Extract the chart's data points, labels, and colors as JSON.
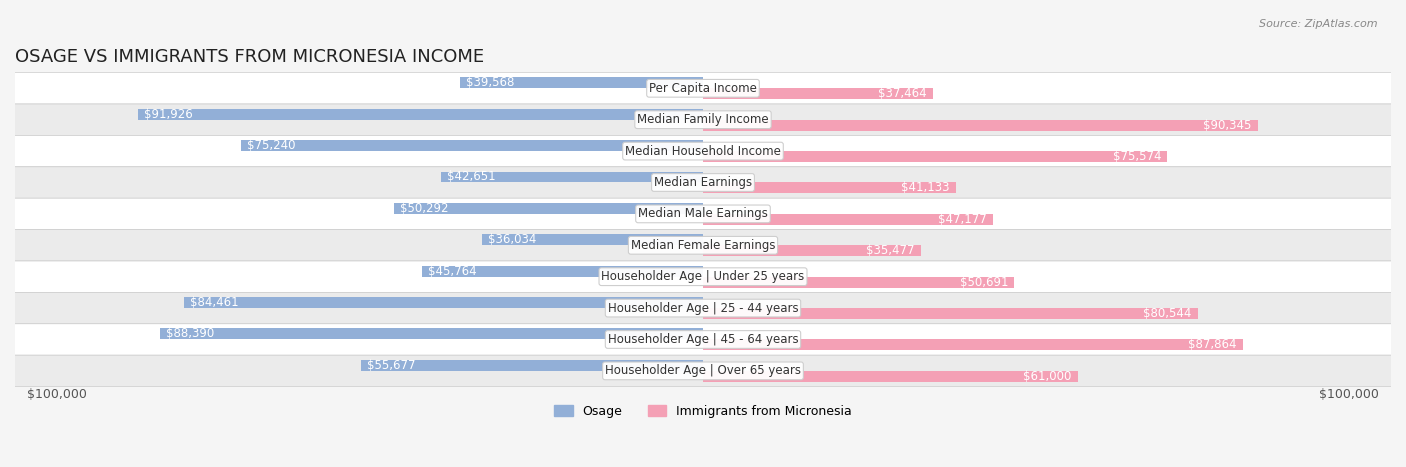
{
  "title": "OSAGE VS IMMIGRANTS FROM MICRONESIA INCOME",
  "source": "Source: ZipAtlas.com",
  "categories": [
    "Per Capita Income",
    "Median Family Income",
    "Median Household Income",
    "Median Earnings",
    "Median Male Earnings",
    "Median Female Earnings",
    "Householder Age | Under 25 years",
    "Householder Age | 25 - 44 years",
    "Householder Age | 45 - 64 years",
    "Householder Age | Over 65 years"
  ],
  "osage_values": [
    39568,
    91926,
    75240,
    42651,
    50292,
    36034,
    45764,
    84461,
    88390,
    55677
  ],
  "micronesia_values": [
    37464,
    90345,
    75574,
    41133,
    47177,
    35477,
    50691,
    80544,
    87864,
    61000
  ],
  "osage_labels": [
    "$39,568",
    "$91,926",
    "$75,240",
    "$42,651",
    "$50,292",
    "$36,034",
    "$45,764",
    "$84,461",
    "$88,390",
    "$55,677"
  ],
  "micronesia_labels": [
    "$37,464",
    "$90,345",
    "$75,574",
    "$41,133",
    "$47,177",
    "$35,477",
    "$50,691",
    "$80,544",
    "$87,864",
    "$61,000"
  ],
  "osage_color": "#92afd7",
  "osage_color_dark": "#6b8cba",
  "micronesia_color": "#f4a0b5",
  "micronesia_color_dark": "#e06080",
  "max_value": 100000,
  "legend_osage": "Osage",
  "legend_micronesia": "Immigrants from Micronesia",
  "bg_color": "#f5f5f5",
  "row_bg_light": "#ffffff",
  "row_bg_dark": "#eeeeee",
  "xlabel_left": "$100,000",
  "xlabel_right": "$100,000",
  "title_fontsize": 13,
  "label_fontsize": 8.5,
  "category_fontsize": 8.5
}
